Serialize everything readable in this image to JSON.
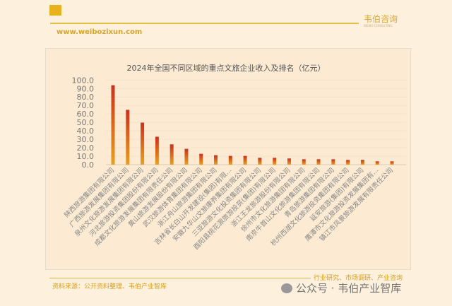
{
  "header": {
    "brand": "韦伯咨询",
    "brand_sub": "WEIBO CONSULTING",
    "url": "www.weibozixun.com"
  },
  "footer": {
    "source": "资料来源：公开资料整理、韦伯产业智库",
    "tags": "行业研究、市场调研、产业咨询",
    "watermark": "公众号 · 韦伯产业智库"
  },
  "colors": {
    "bar_top": "#c8321e",
    "bar_bottom": "#e8a020",
    "background": "#fdf0dc"
  },
  "chart_data": {
    "type": "bar",
    "title": "2024年全国不同区域的重点文旅企业收入及排名（亿元）",
    "xlabel": "",
    "ylabel": "",
    "ylim": [
      0,
      100
    ],
    "yticks": [
      "0.0",
      "10.0",
      "20.0",
      "30.0",
      "40.0",
      "50.0",
      "60.0",
      "70.0",
      "80.0",
      "90.0",
      "100.0"
    ],
    "grid": true,
    "categories": [
      "陕西旅游集团有限公司",
      "广西旅游发展集团有限公司",
      "泉州文化旅游发展集团有限公司",
      "河北旅游投资集团股份有限公司",
      "成都文化旅游发展集团有限责任公司",
      "黄山旅游发展股份有限公司",
      "武汉旅游体育集团有限公司",
      "浙江舟山旅游集团有限公司",
      "吉林省长白山开发建设(集团)有限...",
      "安徽九华山文旅康养集团有限公司",
      "三亚旅游文化投资集团有限公司",
      "酉阳县桃花源旅游投资(集团)有限公司",
      "浙江王龙旅游股份有限公司",
      "徐州市文化旅游集团有限公司",
      "南京牛首山文化旅游集团有限公司",
      "青岛旅游集团有限公司",
      "杭州西湖文化旅游投资集团有限公司",
      "延安旅游(集团)有限公司",
      "鹰潭市文化旅游投资发展集团有...",
      "镇江市风景旅游发展有限责任公司"
    ],
    "values": [
      93.9,
      64.8,
      49.7,
      33.0,
      24.0,
      18.7,
      12.8,
      11.2,
      10.3,
      10.3,
      8.1,
      8.1,
      7.3,
      6.4,
      6.4,
      6.4,
      5.6,
      5.6,
      3.9,
      3.9
    ]
  }
}
